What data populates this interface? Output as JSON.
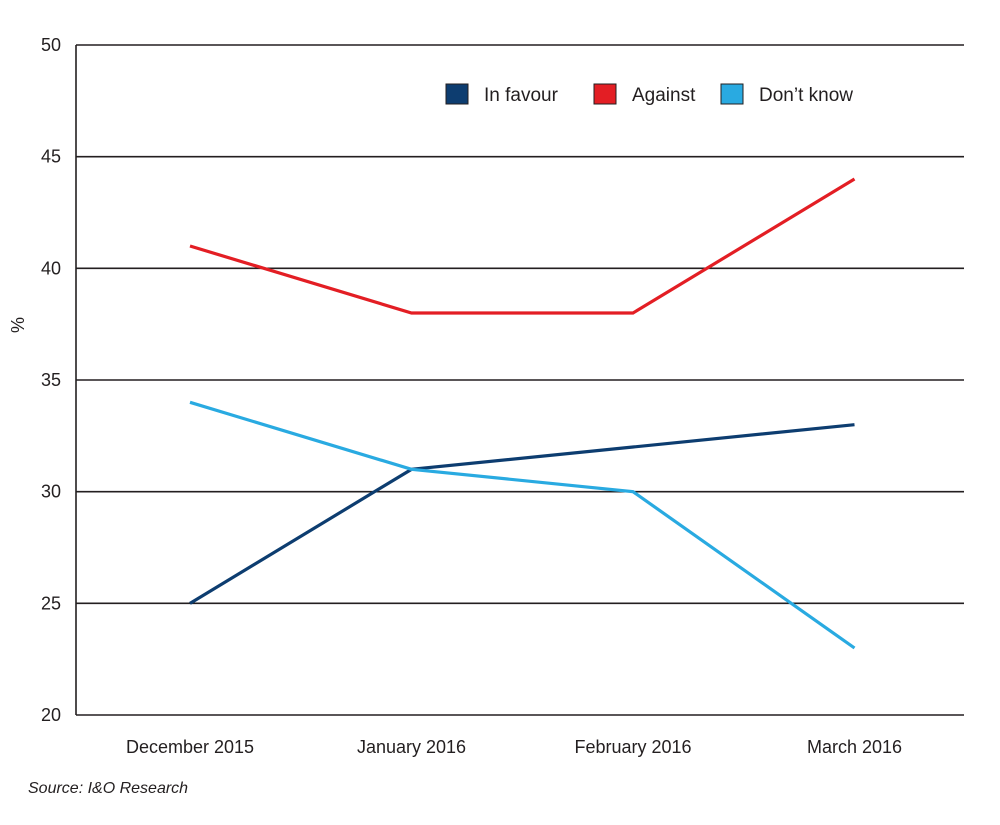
{
  "chart_data": {
    "type": "line",
    "categories": [
      "December 2015",
      "January 2016",
      "February 2016",
      "March 2016"
    ],
    "series": [
      {
        "name": "In favour",
        "values": [
          25,
          31,
          32,
          33
        ],
        "color": "#0d3d70"
      },
      {
        "name": "Against",
        "values": [
          41,
          38,
          38,
          44
        ],
        "color": "#e31e24"
      },
      {
        "name": "Don’t know",
        "values": [
          34,
          31,
          30,
          23
        ],
        "color": "#29aae1"
      }
    ],
    "ylabel": "%",
    "xlabel": "",
    "ylim": [
      20,
      50
    ],
    "yticks": [
      20,
      25,
      30,
      35,
      40,
      45,
      50
    ],
    "grid": true,
    "legend_position": "top-right"
  },
  "source": "Source: I&O Research"
}
